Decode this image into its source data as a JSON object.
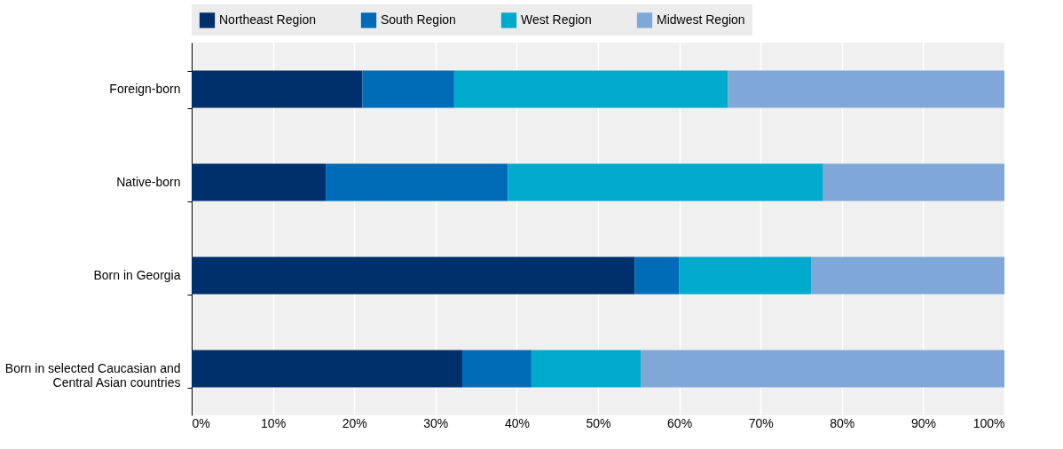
{
  "chart_data": {
    "type": "bar",
    "orientation": "horizontal",
    "stacked": true,
    "categories": [
      "Foreign-born",
      "Native-born",
      "Born in Georgia",
      "Born in selected Caucasian and Central Asian countries"
    ],
    "series": [
      {
        "name": "Northeast Region",
        "color": "#00306b",
        "values": [
          21.0,
          16.5,
          54.5,
          33.3
        ]
      },
      {
        "name": "South Region",
        "color": "#006bb6",
        "values": [
          11.3,
          22.4,
          5.5,
          8.5
        ]
      },
      {
        "name": "West Region",
        "color": "#00aacc",
        "values": [
          33.7,
          38.8,
          16.2,
          13.5
        ]
      },
      {
        "name": "Midwest Region",
        "color": "#7fa8d9",
        "values": [
          34.0,
          22.3,
          23.8,
          44.7
        ]
      }
    ],
    "xlim": [
      0,
      100
    ],
    "xticks": [
      {
        "value": 0,
        "label": "0%"
      },
      {
        "value": 10,
        "label": "10%"
      },
      {
        "value": 20,
        "label": "20%"
      },
      {
        "value": 30,
        "label": "30%"
      },
      {
        "value": 40,
        "label": "40%"
      },
      {
        "value": 50,
        "label": "50%"
      },
      {
        "value": 60,
        "label": "60%"
      },
      {
        "value": 70,
        "label": "70%"
      },
      {
        "value": 80,
        "label": "80%"
      },
      {
        "value": 90,
        "label": "90%"
      },
      {
        "value": 100,
        "label": "100%"
      }
    ],
    "grid": "x",
    "legend": "top"
  }
}
